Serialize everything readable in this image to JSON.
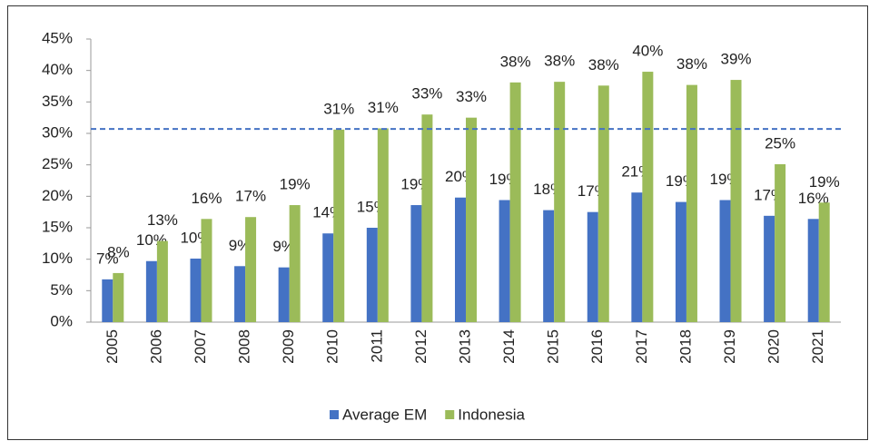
{
  "chart_data": {
    "type": "bar",
    "categories": [
      "2005",
      "2006",
      "2007",
      "2008",
      "2009",
      "2010",
      "2011",
      "2012",
      "2013",
      "2014",
      "2015",
      "2016",
      "2017",
      "2018",
      "2019",
      "2020",
      "2021"
    ],
    "series": [
      {
        "name": "Average EM",
        "color": "#4472c4",
        "values": [
          6.8,
          9.7,
          10.1,
          8.9,
          8.7,
          14.1,
          15.0,
          18.6,
          19.8,
          19.4,
          17.8,
          17.5,
          20.6,
          19.1,
          19.4,
          16.9,
          16.4
        ],
        "value_labels": [
          "7%",
          "10%",
          "10%",
          "9%",
          "9%",
          "14%",
          "15%",
          "19%",
          "20%",
          "19%",
          "18%",
          "17%",
          "21%",
          "19%",
          "19%",
          "17%",
          "16%"
        ]
      },
      {
        "name": "Indonesia",
        "color": "#9bbb59",
        "values": [
          7.8,
          12.9,
          16.4,
          16.7,
          18.6,
          30.6,
          30.8,
          33.0,
          32.5,
          38.1,
          38.2,
          37.6,
          39.8,
          37.7,
          38.5,
          25.1,
          19.0
        ],
        "value_labels": [
          "8%",
          "13%",
          "16%",
          "17%",
          "19%",
          "31%",
          "31%",
          "33%",
          "33%",
          "38%",
          "38%",
          "38%",
          "40%",
          "38%",
          "39%",
          "25%",
          "19%"
        ]
      }
    ],
    "reference_line": {
      "value": 30.7,
      "color": "#4472c4"
    },
    "ylim": [
      0,
      45
    ],
    "yticks": [
      {
        "value": 0,
        "label": "0%"
      },
      {
        "value": 5,
        "label": "5%"
      },
      {
        "value": 10,
        "label": "10%"
      },
      {
        "value": 15,
        "label": "15%"
      },
      {
        "value": 20,
        "label": "20%"
      },
      {
        "value": 25,
        "label": "25%"
      },
      {
        "value": 30,
        "label": "30%"
      },
      {
        "value": 35,
        "label": "35%"
      },
      {
        "value": 40,
        "label": "40%"
      },
      {
        "value": 45,
        "label": "45%"
      }
    ],
    "grid": false,
    "legend": "bottom"
  }
}
